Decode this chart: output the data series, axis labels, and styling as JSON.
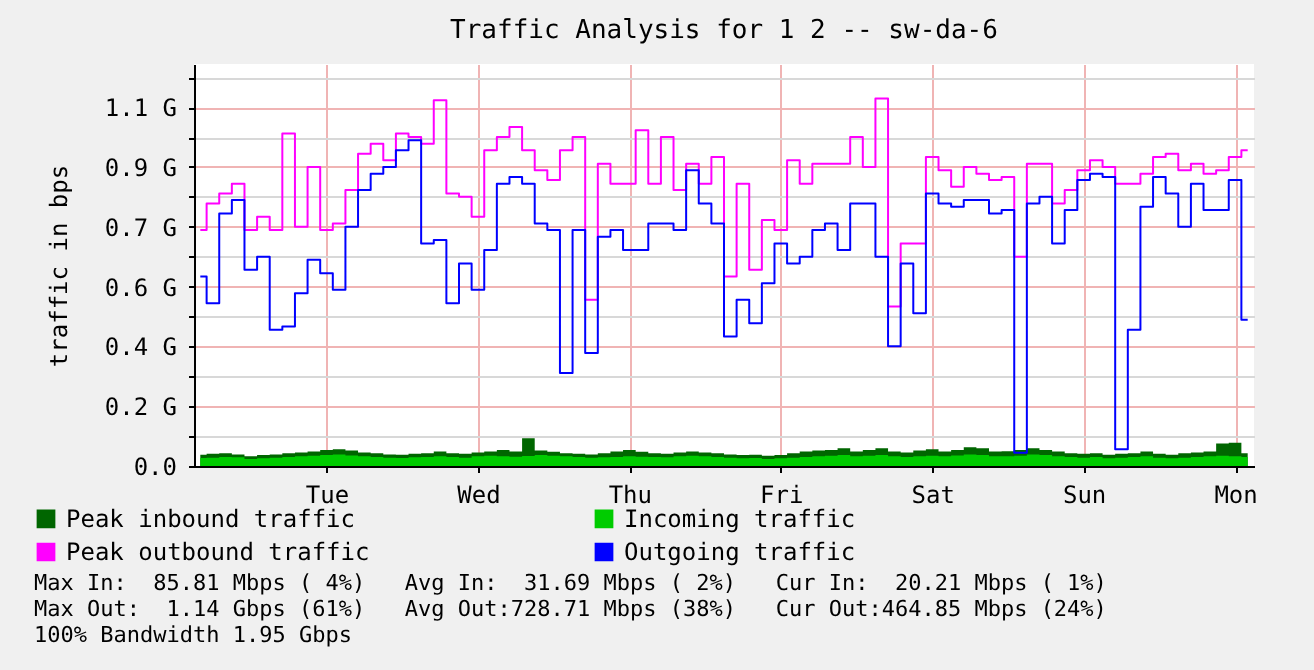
{
  "chart_data": {
    "type": "step",
    "title": "Traffic Analysis for 1 2 -- sw-da-6",
    "ylabel": "traffic in bps",
    "categories": [
      null,
      null,
      null,
      null,
      null,
      null,
      null,
      null,
      null,
      null,
      "Tue",
      null,
      null,
      null,
      null,
      null,
      null,
      null,
      null,
      null,
      null,
      null,
      "Wed",
      null,
      null,
      null,
      null,
      null,
      null,
      null,
      null,
      null,
      null,
      null,
      "Thu",
      null,
      null,
      null,
      null,
      null,
      null,
      null,
      null,
      null,
      null,
      null,
      "Fri",
      null,
      null,
      null,
      null,
      null,
      null,
      null,
      null,
      null,
      null,
      null,
      "Sat",
      null,
      null,
      null,
      null,
      null,
      null,
      null,
      null,
      null,
      null,
      null,
      "Sun",
      null,
      null,
      null,
      null,
      null,
      null,
      null,
      null,
      null,
      null,
      null,
      "Mon",
      null
    ],
    "ylim": [
      0,
      1.25
    ],
    "yticks": [
      {
        "value": 0,
        "label": "0.0"
      },
      {
        "value": 0.093,
        "label": null
      },
      {
        "value": 0.186,
        "label": "0.2 G"
      },
      {
        "value": 0.279,
        "label": null
      },
      {
        "value": 0.372,
        "label": "0.4 G"
      },
      {
        "value": 0.465,
        "label": null
      },
      {
        "value": 0.558,
        "label": "0.6 G"
      },
      {
        "value": 0.651,
        "label": null
      },
      {
        "value": 0.744,
        "label": "0.7 G"
      },
      {
        "value": 0.837,
        "label": null
      },
      {
        "value": 0.93,
        "label": "0.9 G"
      },
      {
        "value": 1.023,
        "label": null
      },
      {
        "value": 1.116,
        "label": "1.1 G"
      },
      {
        "value": 1.209,
        "label": null
      }
    ],
    "grid": true,
    "legend": "bottom",
    "marker": "none",
    "series": [
      {
        "name": "Peak inbound traffic",
        "type": "area",
        "color": "#006600",
        "values": [
          0.035,
          0.038,
          0.04,
          0.036,
          0.03,
          0.034,
          0.036,
          0.04,
          0.042,
          0.045,
          0.05,
          0.052,
          0.048,
          0.042,
          0.04,
          0.036,
          0.035,
          0.038,
          0.04,
          0.045,
          0.04,
          0.038,
          0.042,
          0.045,
          0.05,
          0.045,
          0.086,
          0.048,
          0.044,
          0.04,
          0.038,
          0.036,
          0.04,
          0.045,
          0.05,
          0.044,
          0.04,
          0.038,
          0.042,
          0.045,
          0.042,
          0.04,
          0.036,
          0.034,
          0.035,
          0.032,
          0.034,
          0.04,
          0.045,
          0.048,
          0.05,
          0.055,
          0.045,
          0.05,
          0.055,
          0.045,
          0.042,
          0.048,
          0.052,
          0.045,
          0.05,
          0.058,
          0.055,
          0.045,
          0.046,
          0.05,
          0.055,
          0.05,
          0.045,
          0.04,
          0.038,
          0.04,
          0.035,
          0.038,
          0.04,
          0.045,
          0.038,
          0.035,
          0.04,
          0.042,
          0.045,
          0.07,
          0.072,
          0.04
        ]
      },
      {
        "name": "Incoming traffic",
        "type": "area",
        "color": "#00cc00",
        "values": [
          0.025,
          0.026,
          0.028,
          0.027,
          0.022,
          0.024,
          0.026,
          0.028,
          0.03,
          0.032,
          0.034,
          0.036,
          0.033,
          0.03,
          0.028,
          0.026,
          0.025,
          0.027,
          0.028,
          0.03,
          0.028,
          0.026,
          0.03,
          0.032,
          0.03,
          0.029,
          0.031,
          0.034,
          0.032,
          0.03,
          0.028,
          0.026,
          0.027,
          0.028,
          0.03,
          0.029,
          0.028,
          0.027,
          0.03,
          0.032,
          0.03,
          0.028,
          0.026,
          0.024,
          0.025,
          0.022,
          0.024,
          0.026,
          0.028,
          0.03,
          0.032,
          0.034,
          0.03,
          0.032,
          0.034,
          0.03,
          0.028,
          0.03,
          0.032,
          0.03,
          0.033,
          0.036,
          0.034,
          0.03,
          0.03,
          0.032,
          0.036,
          0.034,
          0.03,
          0.028,
          0.026,
          0.028,
          0.024,
          0.026,
          0.028,
          0.03,
          0.026,
          0.024,
          0.026,
          0.028,
          0.03,
          0.032,
          0.03,
          0.028
        ]
      },
      {
        "name": "Peak outbound traffic",
        "color": "#ff00ff",
        "values": [
          0.734,
          0.816,
          0.847,
          0.878,
          0.734,
          0.775,
          0.734,
          1.034,
          0.744,
          0.93,
          0.734,
          0.754,
          0.858,
          0.971,
          1.002,
          0.951,
          1.034,
          1.023,
          1.002,
          1.137,
          0.847,
          0.837,
          0.775,
          0.982,
          1.023,
          1.054,
          0.982,
          0.92,
          0.889,
          0.982,
          1.023,
          0.517,
          0.94,
          0.878,
          0.878,
          1.044,
          0.878,
          1.023,
          0.858,
          0.94,
          0.878,
          0.961,
          0.589,
          0.878,
          0.61,
          0.765,
          0.734,
          0.951,
          0.878,
          0.94,
          0.94,
          0.94,
          1.023,
          0.93,
          1.143,
          0.496,
          0.692,
          0.692,
          0.961,
          0.92,
          0.868,
          0.93,
          0.909,
          0.889,
          0.899,
          0.651,
          0.94,
          0.94,
          0.816,
          0.858,
          0.92,
          0.951,
          0.93,
          0.878,
          0.878,
          0.909,
          0.961,
          0.971,
          0.92,
          0.94,
          0.909,
          0.92,
          0.961,
          0.982
        ]
      },
      {
        "name": "Outgoing traffic",
        "color": "#0000ff",
        "values": [
          0.589,
          0.506,
          0.785,
          0.827,
          0.61,
          0.651,
          0.424,
          0.434,
          0.537,
          0.641,
          0.599,
          0.548,
          0.744,
          0.858,
          0.909,
          0.93,
          0.982,
          1.013,
          0.692,
          0.703,
          0.506,
          0.63,
          0.548,
          0.672,
          0.878,
          0.899,
          0.878,
          0.754,
          0.734,
          0.289,
          0.734,
          0.351,
          0.713,
          0.734,
          0.672,
          0.672,
          0.754,
          0.754,
          0.734,
          0.92,
          0.816,
          0.754,
          0.403,
          0.517,
          0.444,
          0.568,
          0.692,
          0.63,
          0.651,
          0.734,
          0.754,
          0.672,
          0.816,
          0.816,
          0.651,
          0.372,
          0.63,
          0.475,
          0.847,
          0.816,
          0.806,
          0.827,
          0.827,
          0.785,
          0.796,
          0.041,
          0.816,
          0.837,
          0.692,
          0.796,
          0.889,
          0.909,
          0.899,
          0.052,
          0.424,
          0.806,
          0.899,
          0.847,
          0.744,
          0.878,
          0.796,
          0.796,
          0.889,
          0.455
        ]
      }
    ],
    "annotations": [
      "Max In:  85.81 Mbps ( 4%)   Avg In:  31.69 Mbps ( 2%)   Cur In:  20.21 Mbps ( 1%)",
      "Max Out:  1.14 Gbps (61%)   Avg Out:728.71 Mbps (38%)   Cur Out:464.85 Mbps (24%)",
      "100% Bandwidth 1.95 Gbps"
    ]
  }
}
